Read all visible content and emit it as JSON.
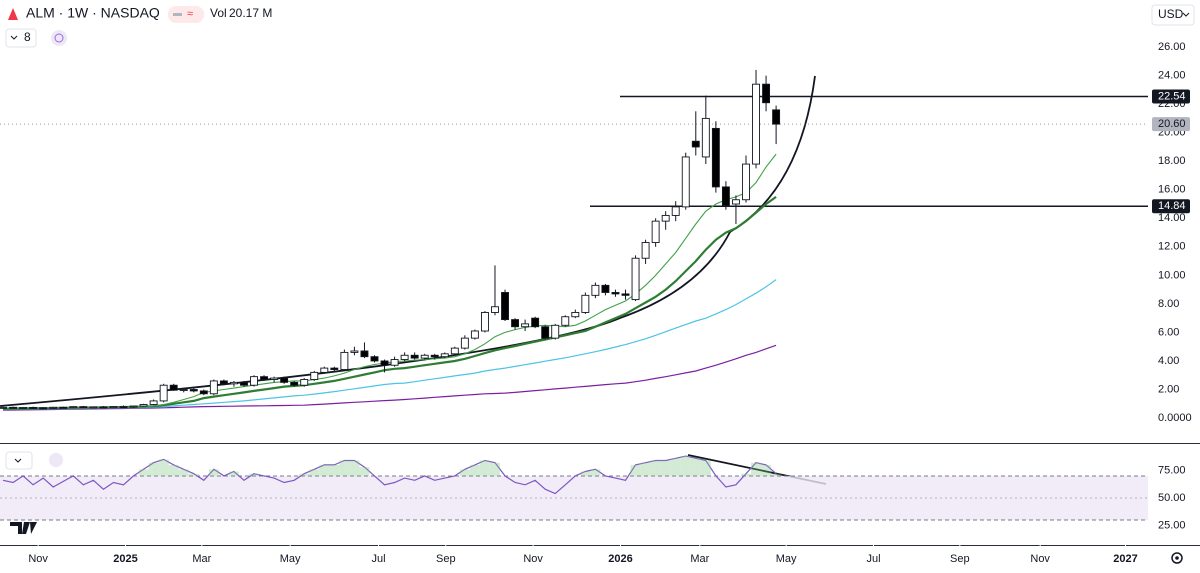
{
  "header": {
    "symbol": "ALM · 1W · NASDAQ",
    "volume_label": "Vol",
    "volume": "20.17 M",
    "interval_count": "8",
    "currency": "USD"
  },
  "chart_data": [
    {
      "type": "candlestick",
      "categories": [
        null,
        null,
        null,
        null,
        null,
        null,
        null,
        null,
        null,
        null,
        null,
        null,
        null,
        null,
        null,
        null,
        null,
        null,
        null,
        null,
        null,
        null,
        null,
        null,
        null,
        null,
        null,
        null,
        null,
        null,
        null,
        null,
        null,
        null,
        null,
        null,
        null,
        null,
        null,
        null,
        null,
        null,
        null,
        null,
        null,
        null,
        null,
        null,
        null,
        null,
        null,
        null,
        null,
        null,
        null,
        null,
        null,
        null,
        null,
        null,
        null,
        null,
        null,
        null,
        null,
        null,
        null,
        null,
        null,
        null,
        null,
        null,
        null,
        null,
        null,
        null,
        null,
        null
      ],
      "open": [
        0.7,
        0.75,
        0.72,
        0.74,
        0.72,
        0.7,
        0.75,
        0.73,
        0.8,
        0.74,
        0.78,
        0.76,
        0.8,
        0.78,
        0.84,
        0.95,
        1.2,
        2.3,
        1.95,
        2.0,
        1.9,
        1.7,
        2.6,
        2.4,
        2.5,
        2.3,
        2.9,
        2.7,
        2.8,
        2.5,
        2.3,
        2.7,
        3.2,
        3.5,
        3.4,
        4.6,
        4.7,
        4.3,
        4.0,
        3.7,
        4.1,
        4.4,
        4.2,
        4.4,
        4.3,
        4.5,
        4.9,
        5.6,
        6.1,
        7.4,
        8.8,
        6.9,
        6.4,
        7.0,
        6.4,
        5.6,
        6.5,
        7.1,
        7.4,
        8.6,
        9.3,
        8.8,
        8.7,
        8.3,
        11.2,
        12.3,
        13.8,
        14.2,
        14.8,
        19.4,
        18.3,
        20.3,
        16.2,
        15.0,
        15.3,
        17.8,
        23.4,
        21.6
      ],
      "high": [
        0.8,
        0.8,
        0.78,
        0.8,
        0.76,
        0.78,
        0.8,
        0.82,
        0.85,
        0.8,
        0.84,
        0.82,
        0.88,
        0.86,
        1.0,
        1.3,
        2.4,
        2.4,
        2.1,
        2.1,
        2.0,
        2.7,
        2.7,
        2.6,
        2.6,
        3.0,
        3.0,
        2.9,
        2.9,
        2.6,
        2.8,
        3.3,
        3.6,
        3.6,
        4.8,
        5.0,
        5.3,
        4.4,
        4.1,
        4.3,
        4.6,
        4.6,
        4.5,
        4.5,
        4.6,
        5.0,
        5.8,
        6.2,
        7.5,
        10.7,
        9.0,
        7.0,
        6.9,
        7.1,
        6.5,
        6.6,
        7.2,
        7.6,
        8.8,
        9.5,
        9.4,
        9.0,
        9.0,
        11.4,
        12.5,
        14.0,
        14.5,
        15.2,
        18.6,
        21.5,
        22.6,
        20.8,
        16.6,
        15.6,
        18.4,
        24.4,
        24.0,
        21.9
      ],
      "low": [
        0.65,
        0.7,
        0.68,
        0.7,
        0.68,
        0.66,
        0.7,
        0.7,
        0.72,
        0.7,
        0.72,
        0.7,
        0.74,
        0.72,
        0.8,
        0.9,
        1.1,
        1.9,
        1.8,
        1.8,
        1.6,
        1.6,
        2.3,
        2.2,
        2.2,
        2.2,
        2.6,
        2.5,
        2.4,
        2.2,
        2.2,
        2.6,
        3.1,
        3.3,
        3.4,
        4.4,
        4.2,
        3.9,
        3.2,
        3.6,
        4.0,
        4.1,
        4.1,
        4.1,
        4.2,
        4.4,
        4.8,
        5.5,
        6.0,
        7.2,
        6.8,
        6.2,
        6.1,
        6.3,
        5.5,
        5.5,
        6.4,
        7.0,
        7.3,
        8.4,
        8.6,
        8.5,
        8.3,
        8.2,
        10.8,
        12.0,
        13.2,
        13.8,
        14.6,
        18.4,
        17.8,
        15.8,
        14.6,
        13.6,
        15.1,
        17.5,
        21.5,
        19.2
      ],
      "close": [
        0.75,
        0.72,
        0.74,
        0.72,
        0.7,
        0.75,
        0.73,
        0.8,
        0.74,
        0.78,
        0.76,
        0.8,
        0.78,
        0.84,
        0.95,
        1.2,
        2.3,
        1.95,
        2.0,
        1.9,
        1.7,
        2.6,
        2.4,
        2.5,
        2.3,
        2.9,
        2.7,
        2.8,
        2.5,
        2.3,
        2.7,
        3.2,
        3.5,
        3.4,
        4.6,
        4.7,
        4.3,
        4.0,
        3.7,
        4.1,
        4.4,
        4.2,
        4.4,
        4.3,
        4.5,
        4.9,
        5.6,
        6.1,
        7.4,
        7.8,
        6.9,
        6.4,
        6.6,
        6.4,
        5.6,
        6.5,
        7.1,
        7.4,
        8.6,
        9.3,
        8.8,
        8.7,
        8.6,
        11.2,
        12.3,
        13.8,
        14.2,
        14.8,
        18.3,
        19.0,
        21.0,
        16.2,
        14.9,
        15.3,
        17.8,
        23.4,
        22.1,
        20.6
      ],
      "up_color": "#ffffff",
      "down_color": "#000000",
      "series": [
        {
          "color": "#7b1fa2",
          "width": 1.2,
          "values": [
            0.55,
            0.56,
            0.57,
            0.58,
            0.59,
            0.6,
            0.61,
            0.62,
            0.63,
            0.64,
            0.65,
            0.66,
            0.67,
            0.68,
            0.69,
            0.7,
            0.72,
            0.74,
            0.76,
            0.78,
            0.8,
            0.81,
            0.82,
            0.83,
            0.84,
            0.85,
            0.86,
            0.87,
            0.88,
            0.89,
            0.9,
            0.94,
            0.98,
            1.02,
            1.06,
            1.1,
            1.14,
            1.18,
            1.22,
            1.26,
            1.3,
            1.35,
            1.4,
            1.45,
            1.5,
            1.55,
            1.6,
            1.65,
            1.7,
            1.72,
            1.75,
            1.8,
            1.86,
            1.92,
            1.98,
            2.04,
            2.1,
            2.16,
            2.22,
            2.28,
            2.34,
            2.4,
            2.45,
            2.55,
            2.65,
            2.78,
            2.9,
            3.03,
            3.16,
            3.3,
            3.5,
            3.7,
            3.92,
            4.15,
            4.4,
            4.6,
            4.85,
            5.1
          ]
        },
        {
          "color": "#4dc3e6",
          "width": 1.2,
          "values": [
            0.6,
            0.61,
            0.62,
            0.63,
            0.64,
            0.65,
            0.66,
            0.67,
            0.68,
            0.69,
            0.7,
            0.71,
            0.72,
            0.73,
            0.74,
            0.76,
            0.8,
            0.85,
            0.9,
            0.95,
            1.0,
            1.05,
            1.1,
            1.15,
            1.2,
            1.27,
            1.34,
            1.41,
            1.48,
            1.55,
            1.6,
            1.68,
            1.76,
            1.85,
            1.95,
            2.05,
            2.15,
            2.25,
            2.35,
            2.42,
            2.45,
            2.55,
            2.65,
            2.75,
            2.85,
            2.95,
            3.05,
            3.15,
            3.3,
            3.4,
            3.5,
            3.62,
            3.74,
            3.86,
            3.98,
            4.1,
            4.22,
            4.36,
            4.5,
            4.65,
            4.8,
            4.98,
            5.15,
            5.35,
            5.55,
            5.8,
            6.05,
            6.3,
            6.55,
            6.8,
            7.0,
            7.3,
            7.6,
            7.95,
            8.35,
            8.75,
            9.2,
            9.7
          ]
        },
        {
          "color": "#2e7d32",
          "width": 2.2,
          "values": [
            0.65,
            0.66,
            0.67,
            0.68,
            0.69,
            0.7,
            0.71,
            0.72,
            0.73,
            0.74,
            0.75,
            0.76,
            0.77,
            0.78,
            0.8,
            0.83,
            0.9,
            1.0,
            1.1,
            1.2,
            1.4,
            1.5,
            1.6,
            1.7,
            1.8,
            1.9,
            2.0,
            2.1,
            2.2,
            2.25,
            2.3,
            2.4,
            2.5,
            2.6,
            2.75,
            2.9,
            3.05,
            3.2,
            3.35,
            3.45,
            3.5,
            3.6,
            3.7,
            3.8,
            3.9,
            4.0,
            4.15,
            4.35,
            4.55,
            4.75,
            4.9,
            5.05,
            5.2,
            5.35,
            5.5,
            5.65,
            5.8,
            5.95,
            6.1,
            6.4,
            6.7,
            7.0,
            7.3,
            7.7,
            8.1,
            8.5,
            9.0,
            9.6,
            10.3,
            11.0,
            11.8,
            12.5,
            13.0,
            13.3,
            13.8,
            14.4,
            15.0,
            15.5
          ]
        },
        {
          "color": "#43a047",
          "width": 1.1,
          "values": [
            0.7,
            0.71,
            0.72,
            0.73,
            0.73,
            0.74,
            0.74,
            0.75,
            0.76,
            0.77,
            0.77,
            0.78,
            0.78,
            0.79,
            0.8,
            0.85,
            0.95,
            1.1,
            1.3,
            1.5,
            1.8,
            1.9,
            2.0,
            2.1,
            2.2,
            2.3,
            2.4,
            2.5,
            2.55,
            2.6,
            2.6,
            2.7,
            2.8,
            2.95,
            3.15,
            3.4,
            3.6,
            3.75,
            3.85,
            3.95,
            4.0,
            4.05,
            4.1,
            4.15,
            4.2,
            4.3,
            4.5,
            4.8,
            5.2,
            5.7,
            6.0,
            6.2,
            6.35,
            6.45,
            6.5,
            6.45,
            6.4,
            6.5,
            6.8,
            7.2,
            7.6,
            7.9,
            8.2,
            8.7,
            9.3,
            10.0,
            10.8,
            11.6,
            12.6,
            13.6,
            14.5,
            15.0,
            15.3,
            15.5,
            15.8,
            16.5,
            17.6,
            18.5
          ]
        }
      ],
      "levels": [
        22.54,
        14.84
      ],
      "last_price": {
        "value": 20.6,
        "label": "20.60"
      },
      "xlim": [
        -0.3,
        114.04
      ],
      "xticks": [
        {
          "value": 3.5,
          "label": "Nov"
        },
        {
          "value": 12.2,
          "label": "2025"
        },
        {
          "value": 19.8,
          "label": "Mar"
        },
        {
          "value": 28.6,
          "label": "May"
        },
        {
          "value": 37.4,
          "label": "Jul"
        },
        {
          "value": 44.1,
          "label": "Sep"
        },
        {
          "value": 52.8,
          "label": "Nov"
        },
        {
          "value": 61.5,
          "label": "2026"
        },
        {
          "value": 69.4,
          "label": "Mar"
        },
        {
          "value": 78.0,
          "label": "May"
        },
        {
          "value": 86.7,
          "label": "Jul"
        },
        {
          "value": 95.3,
          "label": "Sep"
        },
        {
          "value": 103.3,
          "label": "Nov"
        },
        {
          "value": 111.8,
          "label": "2027"
        }
      ],
      "ylim": [
        -1.75,
        29.3
      ],
      "yticks": [
        {
          "value": 26,
          "label": "26.00"
        },
        {
          "value": 24,
          "label": "24.00"
        },
        {
          "value": 22,
          "label": "22.00"
        },
        {
          "value": 20,
          "label": "20.00"
        },
        {
          "value": 18,
          "label": "18.00"
        },
        {
          "value": 16,
          "label": "16.00"
        },
        {
          "value": 14,
          "label": "14.00"
        },
        {
          "value": 12,
          "label": "12.00"
        },
        {
          "value": 10,
          "label": "10.00"
        },
        {
          "value": 8,
          "label": "8.00"
        },
        {
          "value": 6,
          "label": "6.00"
        },
        {
          "value": 4,
          "label": "4.00"
        },
        {
          "value": 2,
          "label": "2.00"
        },
        {
          "value": 0,
          "label": "0.0000"
        }
      ]
    },
    {
      "type": "line",
      "color": "#7e57c2",
      "values": [
        66,
        64,
        70,
        62,
        68,
        60,
        65,
        70,
        62,
        66,
        58,
        64,
        62,
        70,
        76,
        82,
        85,
        80,
        76,
        72,
        66,
        76,
        70,
        74,
        66,
        72,
        70,
        68,
        64,
        66,
        72,
        76,
        80,
        80,
        84,
        84,
        78,
        70,
        62,
        64,
        68,
        66,
        70,
        66,
        68,
        70,
        76,
        80,
        84,
        82,
        70,
        64,
        62,
        66,
        58,
        54,
        62,
        70,
        74,
        76,
        70,
        68,
        66,
        80,
        82,
        84,
        84,
        86,
        88,
        86,
        84,
        70,
        60,
        62,
        72,
        82,
        80,
        72
      ],
      "band": [
        30,
        70
      ],
      "midline": 50,
      "ylim": [
        7.3,
        99
      ],
      "yticks": [
        {
          "value": 75,
          "label": "75.00"
        },
        {
          "value": 50,
          "label": "50.00"
        },
        {
          "value": 25,
          "label": "25.00"
        }
      ]
    }
  ]
}
